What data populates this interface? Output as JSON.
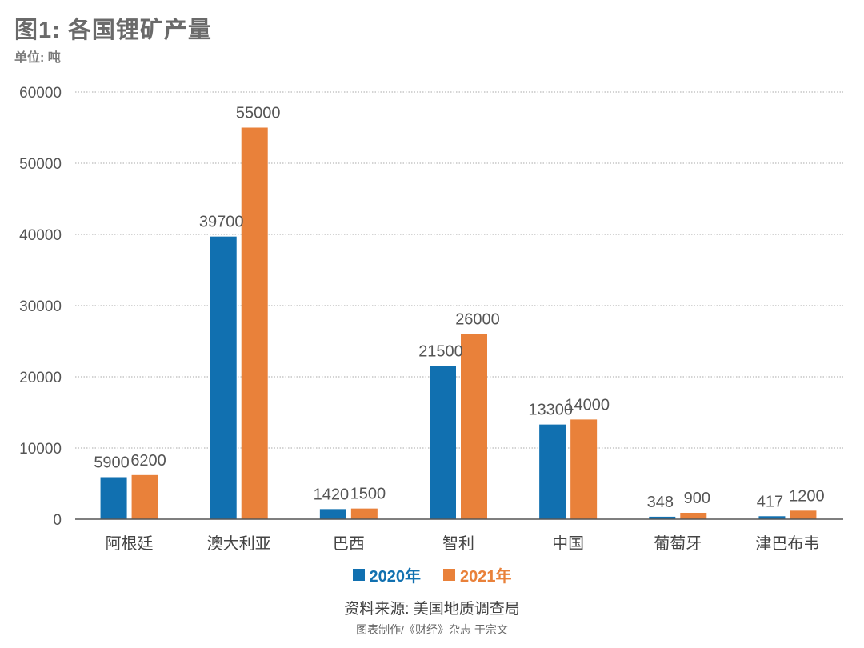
{
  "title": "图1: 各国锂矿产量",
  "unit": "单位: 吨",
  "source": "资料来源: 美国地质调查局",
  "credit": "图表制作/《财经》杂志 于宗文",
  "colors": {
    "series_2020": "#1170b0",
    "series_2021": "#e9813a",
    "grid": "#aaaaaa",
    "axis": "#555555"
  },
  "chart_data": {
    "type": "bar",
    "categories": [
      "阿根廷",
      "澳大利亚",
      "巴西",
      "智利",
      "中国",
      "葡萄牙",
      "津巴布韦"
    ],
    "series": [
      {
        "name": "2020年",
        "values": [
          5900,
          39700,
          1420,
          21500,
          13300,
          348,
          417
        ],
        "labels": [
          "5900",
          "39700",
          "1420",
          "21500",
          "13300",
          "348",
          "417"
        ]
      },
      {
        "name": "2021年",
        "values": [
          6200,
          55000,
          1500,
          26000,
          14000,
          900,
          1200
        ],
        "labels": [
          "6200",
          "55000",
          "1500",
          "26000",
          "14000",
          "900",
          "1200"
        ]
      }
    ],
    "ylim": [
      0,
      60000
    ],
    "yticks": [
      "0",
      "10000",
      "20000",
      "30000",
      "40000",
      "50000",
      "60000"
    ],
    "grid": true,
    "legend": "bottom"
  }
}
